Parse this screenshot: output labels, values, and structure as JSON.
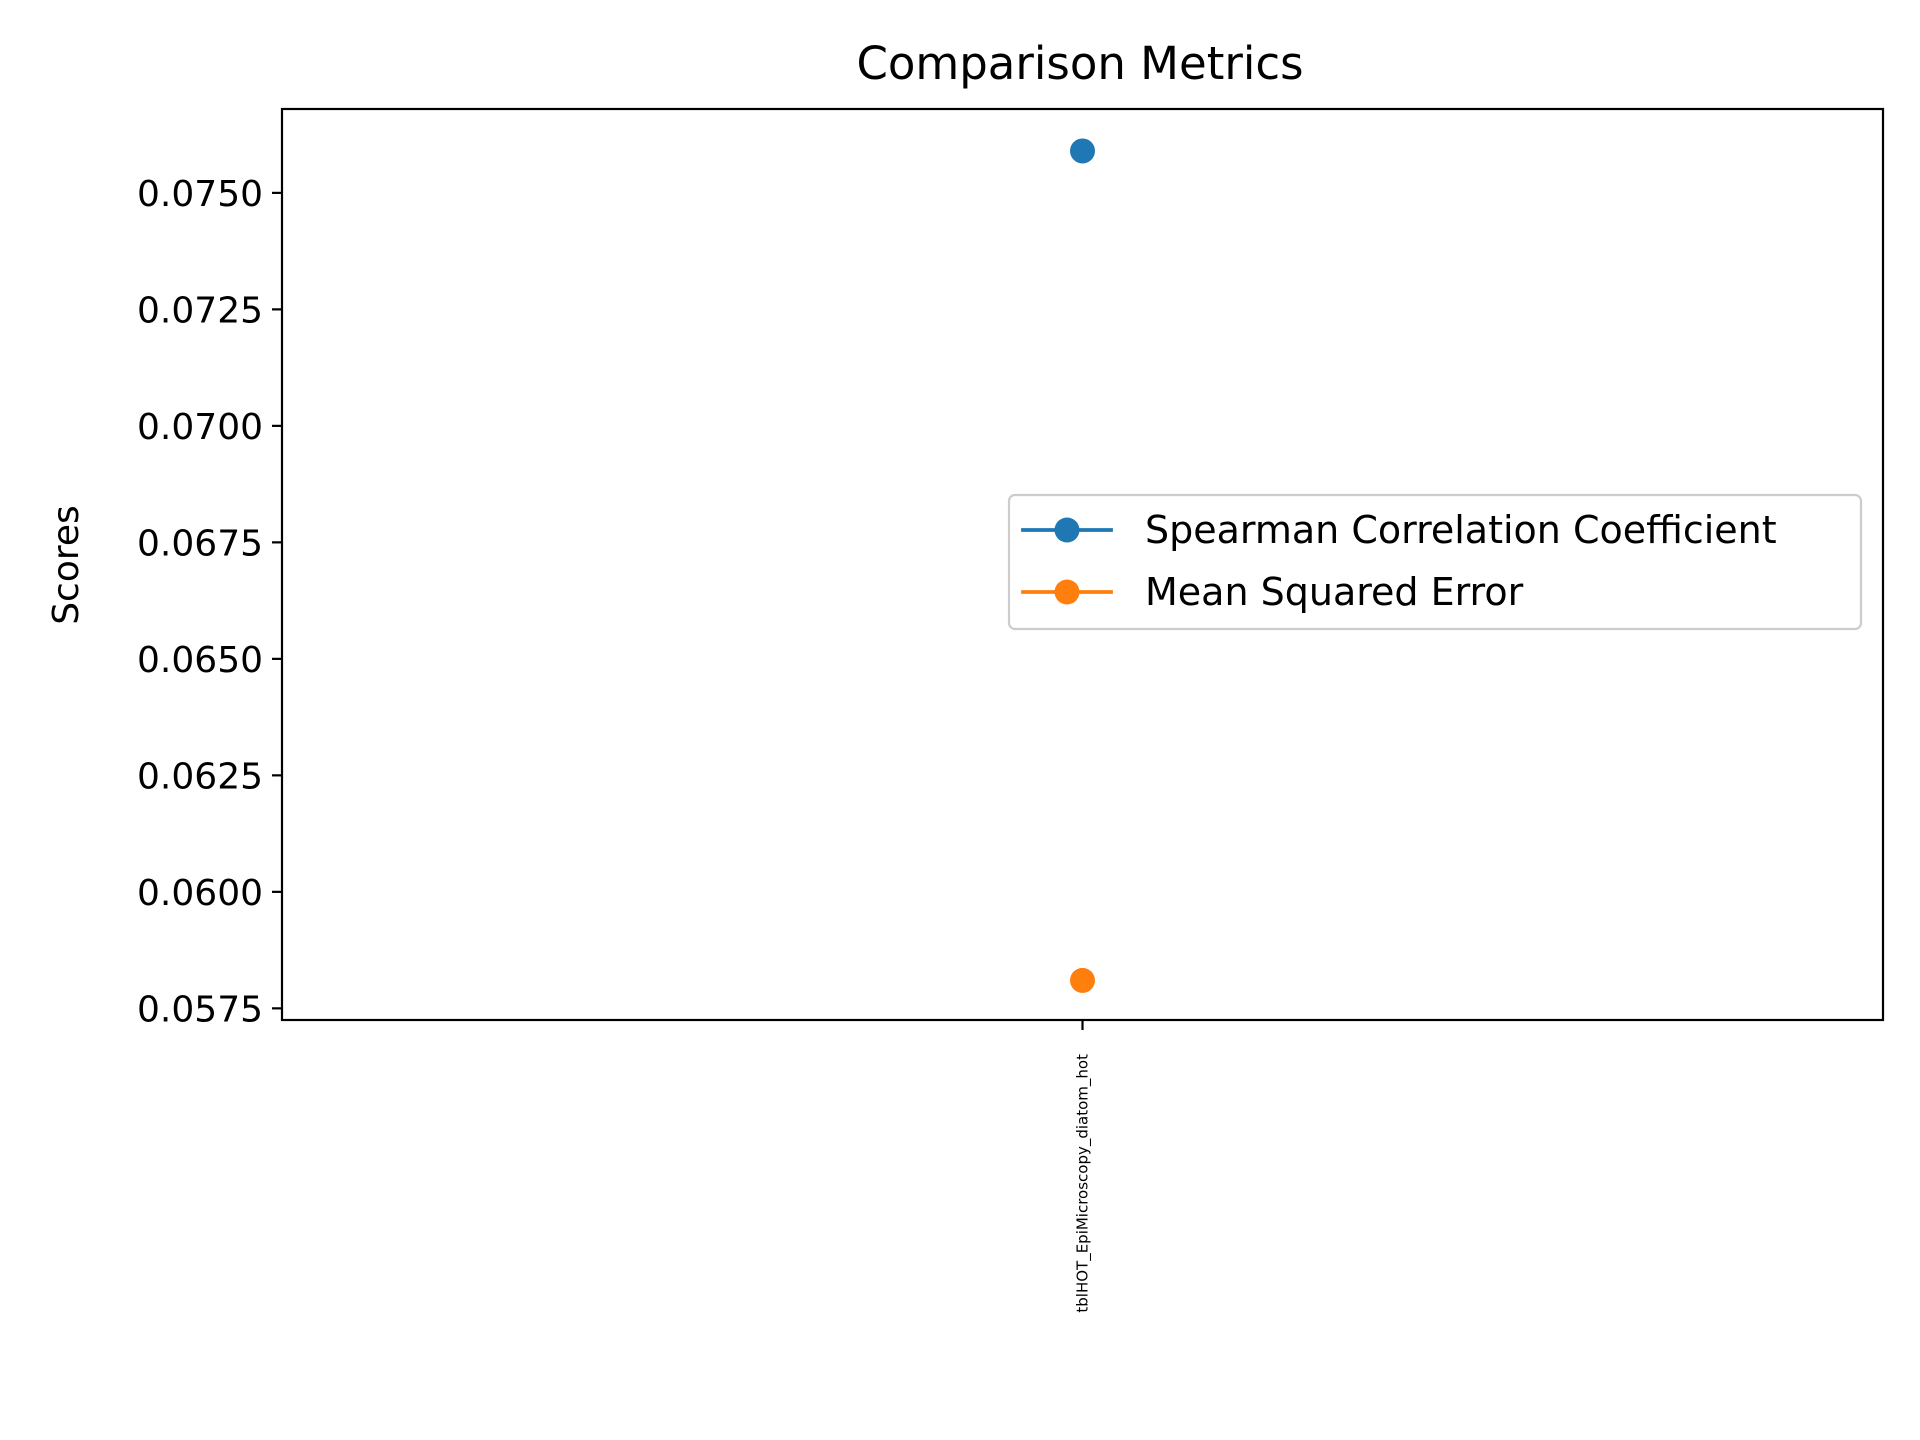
{
  "chart_data": {
    "type": "line",
    "title": "Comparison Metrics",
    "xlabel": "",
    "ylabel": "Scores",
    "categories": [
      "tblHOT_EpiMicroscopy_diatom_hot"
    ],
    "ylim": [
      0.05725,
      0.0768
    ],
    "yticks": [
      0.0575,
      0.06,
      0.0625,
      0.065,
      0.0675,
      0.07,
      0.0725,
      0.075
    ],
    "ytick_labels": [
      "0.0575",
      "0.0600",
      "0.0625",
      "0.0650",
      "0.0675",
      "0.0700",
      "0.0725",
      "0.0750"
    ],
    "grid": false,
    "legend_position": "center-right",
    "series": [
      {
        "name": "Spearman Correlation Coefficient",
        "values": [
          0.0759
        ],
        "color": "#1f77b4",
        "marker": "circle"
      },
      {
        "name": "Mean Squared Error",
        "values": [
          0.0581
        ],
        "color": "#ff7f0e",
        "marker": "circle"
      }
    ]
  }
}
